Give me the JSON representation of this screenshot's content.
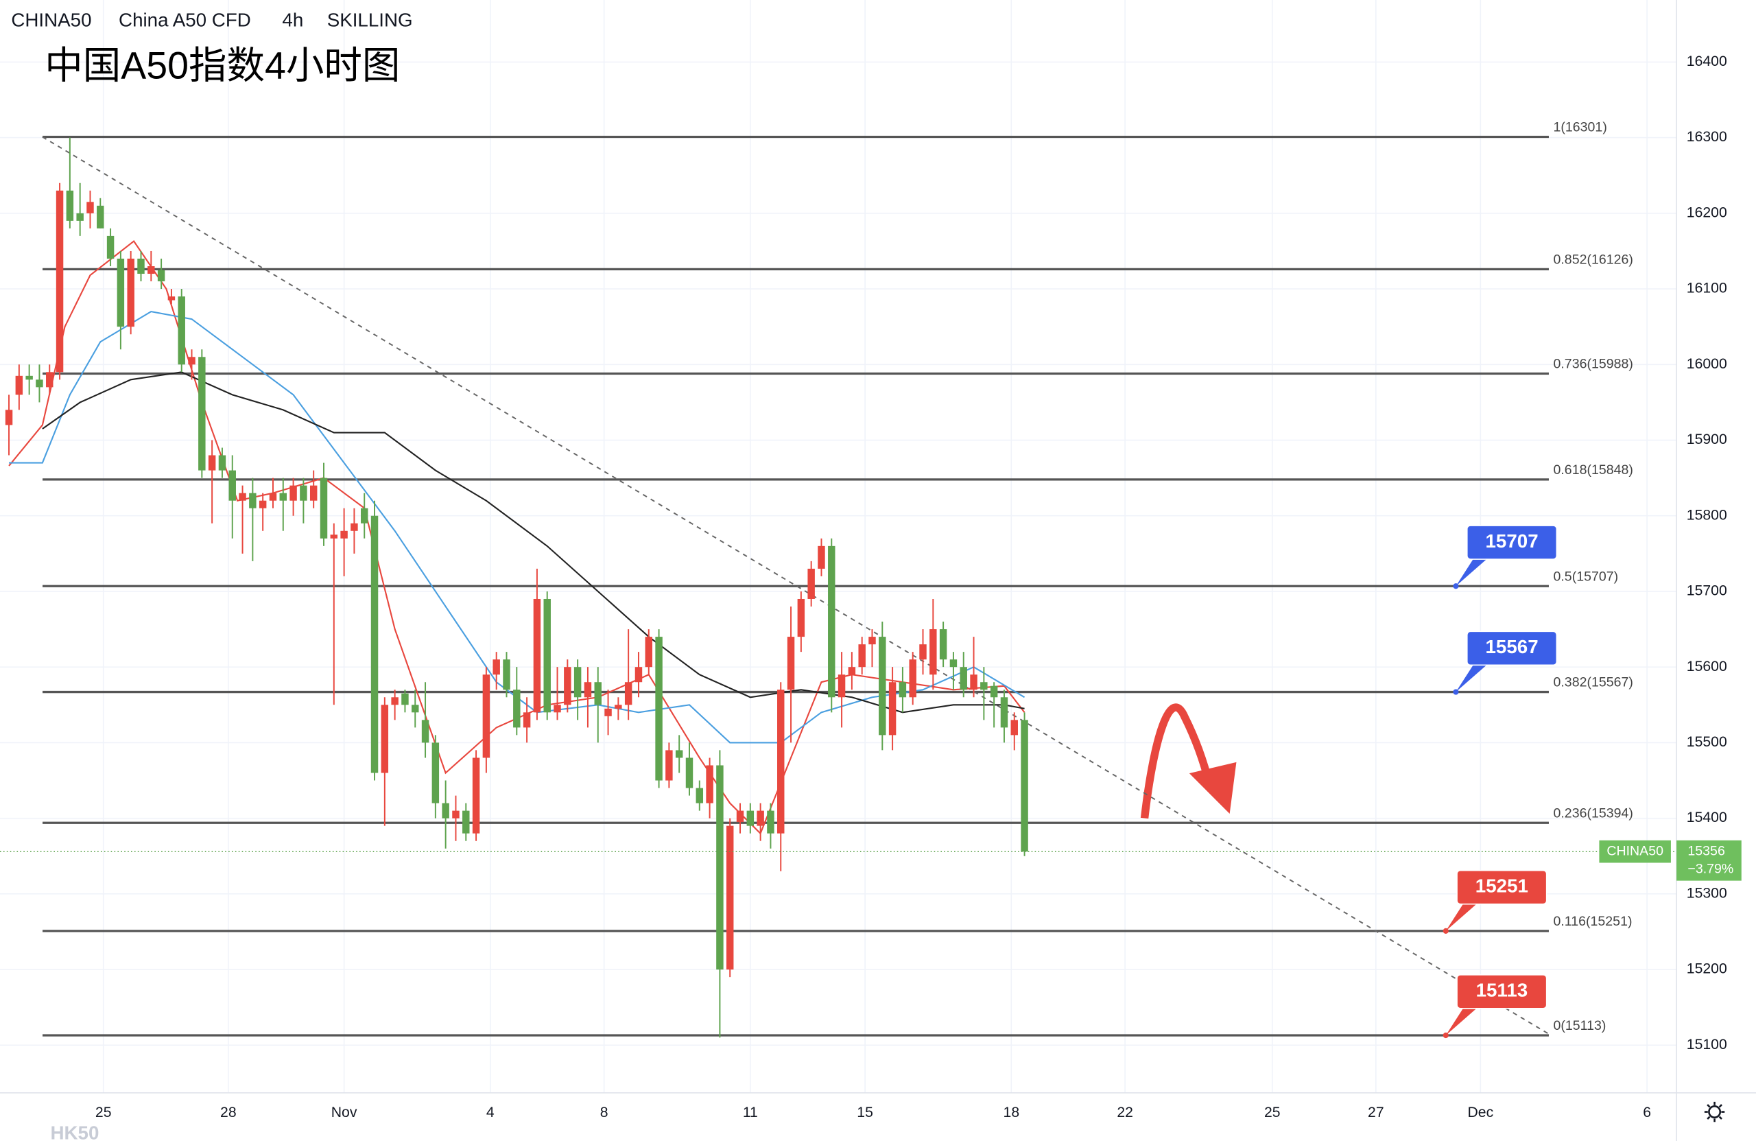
{
  "header": {
    "symbol": "CHINA50",
    "name": "China A50 CFD",
    "interval": "4h",
    "broker": "SKILLING",
    "title": "中国A50指数4小时图",
    "watermark": "HK50"
  },
  "chart_data": {
    "type": "candlestick",
    "up_color": "#e8473e",
    "down_color": "#5ea34e",
    "grid": true,
    "ylim": [
      15037,
      16482
    ],
    "yticks": [
      15100,
      15200,
      15300,
      15400,
      15500,
      15600,
      15700,
      15800,
      15900,
      16000,
      16100,
      16200,
      16300,
      16400
    ],
    "xlim": [
      -0.88,
      164.2
    ],
    "xticks": [
      {
        "value": 9.3,
        "label": "25"
      },
      {
        "value": 21.6,
        "label": "28"
      },
      {
        "value": 33,
        "label": "Nov"
      },
      {
        "value": 47.4,
        "label": "4"
      },
      {
        "value": 58.6,
        "label": "8"
      },
      {
        "value": 73,
        "label": "11"
      },
      {
        "value": 84.3,
        "label": "15"
      },
      {
        "value": 98.7,
        "label": "18"
      },
      {
        "value": 109.9,
        "label": "22"
      },
      {
        "value": 124.4,
        "label": "25"
      },
      {
        "value": 134.6,
        "label": "27"
      },
      {
        "value": 144.9,
        "label": "Dec"
      },
      {
        "value": 161.3,
        "label": "6"
      }
    ],
    "ohlc": [
      [
        15920,
        15960,
        15880,
        15940
      ],
      [
        15960,
        16000,
        15940,
        15985
      ],
      [
        15985,
        16000,
        15960,
        15980
      ],
      [
        15980,
        16000,
        15950,
        15970
      ],
      [
        15970,
        16000,
        15960,
        15990
      ],
      [
        15990,
        16240,
        15980,
        16230
      ],
      [
        16230,
        16300,
        16180,
        16190
      ],
      [
        16200,
        16240,
        16170,
        16190
      ],
      [
        16200,
        16230,
        16180,
        16215
      ],
      [
        16210,
        16220,
        16180,
        16180
      ],
      [
        16170,
        16180,
        16130,
        16140
      ],
      [
        16140,
        16150,
        16020,
        16050
      ],
      [
        16050,
        16150,
        16040,
        16140
      ],
      [
        16140,
        16150,
        16110,
        16120
      ],
      [
        16120,
        16150,
        16110,
        16130
      ],
      [
        16125,
        16140,
        16100,
        16110
      ],
      [
        16085,
        16100,
        16080,
        16090
      ],
      [
        16090,
        16100,
        15990,
        16000
      ],
      [
        16000,
        16020,
        15980,
        16010
      ],
      [
        16010,
        16020,
        15850,
        15860
      ],
      [
        15860,
        15900,
        15790,
        15880
      ],
      [
        15880,
        15890,
        15850,
        15860
      ],
      [
        15860,
        15880,
        15770,
        15820
      ],
      [
        15820,
        15840,
        15750,
        15830
      ],
      [
        15830,
        15850,
        15740,
        15810
      ],
      [
        15810,
        15830,
        15780,
        15820
      ],
      [
        15820,
        15850,
        15810,
        15830
      ],
      [
        15830,
        15850,
        15780,
        15820
      ],
      [
        15820,
        15850,
        15800,
        15840
      ],
      [
        15840,
        15850,
        15790,
        15820
      ],
      [
        15820,
        15860,
        15810,
        15840
      ],
      [
        15850,
        15870,
        15760,
        15770
      ],
      [
        15770,
        15790,
        15550,
        15775
      ],
      [
        15770,
        15810,
        15720,
        15780
      ],
      [
        15780,
        15810,
        15750,
        15790
      ],
      [
        15810,
        15830,
        15770,
        15790
      ],
      [
        15800,
        15820,
        15450,
        15460
      ],
      [
        15460,
        15560,
        15390,
        15550
      ],
      [
        15550,
        15570,
        15530,
        15560
      ],
      [
        15565,
        15570,
        15540,
        15550
      ],
      [
        15550,
        15570,
        15520,
        15540
      ],
      [
        15530,
        15580,
        15480,
        15500
      ],
      [
        15500,
        15510,
        15400,
        15420
      ],
      [
        15420,
        15450,
        15360,
        15400
      ],
      [
        15400,
        15430,
        15370,
        15410
      ],
      [
        15410,
        15420,
        15370,
        15380
      ],
      [
        15380,
        15490,
        15370,
        15480
      ],
      [
        15480,
        15600,
        15460,
        15590
      ],
      [
        15590,
        15620,
        15570,
        15610
      ],
      [
        15610,
        15620,
        15560,
        15570
      ],
      [
        15570,
        15600,
        15510,
        15520
      ],
      [
        15520,
        15560,
        15500,
        15540
      ],
      [
        15540,
        15730,
        15530,
        15690
      ],
      [
        15690,
        15700,
        15530,
        15540
      ],
      [
        15540,
        15600,
        15530,
        15550
      ],
      [
        15550,
        15610,
        15540,
        15600
      ],
      [
        15600,
        15610,
        15530,
        15560
      ],
      [
        15560,
        15600,
        15520,
        15580
      ],
      [
        15580,
        15600,
        15500,
        15550
      ],
      [
        15535,
        15570,
        15510,
        15545
      ],
      [
        15545,
        15560,
        15530,
        15550
      ],
      [
        15550,
        15650,
        15530,
        15580
      ],
      [
        15580,
        15620,
        15560,
        15600
      ],
      [
        15600,
        15650,
        15590,
        15640
      ],
      [
        15640,
        15650,
        15440,
        15450
      ],
      [
        15450,
        15500,
        15440,
        15490
      ],
      [
        15490,
        15510,
        15460,
        15480
      ],
      [
        15480,
        15500,
        15430,
        15440
      ],
      [
        15440,
        15450,
        15410,
        15420
      ],
      [
        15420,
        15480,
        15400,
        15470
      ],
      [
        15470,
        15490,
        15110,
        15200
      ],
      [
        15200,
        15400,
        15190,
        15390
      ],
      [
        15395,
        15420,
        15380,
        15410
      ],
      [
        15410,
        15420,
        15380,
        15390
      ],
      [
        15390,
        15420,
        15370,
        15410
      ],
      [
        15410,
        15420,
        15360,
        15380
      ],
      [
        15380,
        15580,
        15330,
        15570
      ],
      [
        15570,
        15680,
        15500,
        15640
      ],
      [
        15640,
        15700,
        15620,
        15690
      ],
      [
        15690,
        15740,
        15680,
        15730
      ],
      [
        15730,
        15770,
        15720,
        15760
      ],
      [
        15760,
        15770,
        15540,
        15560
      ],
      [
        15560,
        15620,
        15520,
        15590
      ],
      [
        15590,
        15620,
        15570,
        15600
      ],
      [
        15600,
        15640,
        15590,
        15630
      ],
      [
        15630,
        15650,
        15600,
        15640
      ],
      [
        15640,
        15660,
        15490,
        15510
      ],
      [
        15510,
        15600,
        15490,
        15580
      ],
      [
        15580,
        15600,
        15540,
        15560
      ],
      [
        15560,
        15620,
        15550,
        15610
      ],
      [
        15610,
        15650,
        15590,
        15630
      ],
      [
        15590,
        15690,
        15570,
        15650
      ],
      [
        15650,
        15660,
        15600,
        15610
      ],
      [
        15610,
        15620,
        15570,
        15600
      ],
      [
        15600,
        15620,
        15560,
        15570
      ],
      [
        15570,
        15640,
        15560,
        15590
      ],
      [
        15580,
        15600,
        15530,
        15570
      ],
      [
        15575,
        15580,
        15520,
        15560
      ],
      [
        15560,
        15570,
        15500,
        15520
      ],
      [
        15510,
        15540,
        15490,
        15530
      ],
      [
        15530,
        15540,
        15350,
        15356
      ]
    ],
    "lines": [
      {
        "color": "#e8473e",
        "x": [
          0,
          3.3,
          5.5,
          8,
          12.3,
          15.5,
          19,
          22.5,
          26,
          31,
          35,
          38,
          43,
          48,
          53,
          58,
          63,
          68,
          71,
          74,
          77,
          80,
          83,
          88,
          93,
          98,
          100
        ],
        "values": [
          15866,
          15920,
          16050,
          16118,
          16163,
          16100,
          15950,
          15820,
          15830,
          15850,
          15810,
          15650,
          15460,
          15520,
          15550,
          15560,
          15590,
          15480,
          15420,
          15380,
          15480,
          15580,
          15590,
          15580,
          15570,
          15575,
          15540
        ]
      },
      {
        "color": "#4a9fe0",
        "x": [
          0,
          3.3,
          6,
          9,
          14,
          18,
          23,
          28,
          33,
          38,
          43,
          48,
          52,
          58,
          62,
          67,
          71,
          76,
          80,
          85,
          90,
          95,
          100
        ],
        "values": [
          15870,
          15870,
          15960,
          16030,
          16070,
          16060,
          16010,
          15960,
          15870,
          15780,
          15680,
          15580,
          15540,
          15550,
          15540,
          15550,
          15500,
          15500,
          15540,
          15560,
          15570,
          15600,
          15560
        ]
      },
      {
        "color": "#222222",
        "x": [
          3.3,
          7,
          12,
          17,
          22,
          27,
          32,
          37,
          42,
          47,
          53,
          58,
          63,
          68,
          73,
          78,
          83,
          88,
          93,
          98,
          100
        ],
        "values": [
          15915,
          15950,
          15980,
          15990,
          15960,
          15940,
          15910,
          15910,
          15860,
          15820,
          15760,
          15700,
          15640,
          15590,
          15560,
          15570,
          15560,
          15540,
          15550,
          15550,
          15545
        ]
      }
    ],
    "trendline": {
      "x": [
        3.3,
        151.6
      ],
      "values": [
        16301,
        15115
      ]
    },
    "fib_levels": [
      {
        "label": "1(16301)",
        "value": 16301
      },
      {
        "label": "0.852(16126)",
        "value": 16126
      },
      {
        "label": "0.736(15988)",
        "value": 15988
      },
      {
        "label": "0.618(15848)",
        "value": 15848
      },
      {
        "label": "0.5(15707)",
        "value": 15707
      },
      {
        "label": "0.382(15567)",
        "value": 15567
      },
      {
        "label": "0.236(15394)",
        "value": 15394
      },
      {
        "label": "0.116(15251)",
        "value": 15251
      },
      {
        "label": "0(15113)",
        "value": 15113
      }
    ],
    "badges": [
      {
        "value": 15707,
        "color": "#3b5fe8"
      },
      {
        "value": 15567,
        "color": "#3b5fe8"
      },
      {
        "value": 15251,
        "color": "#e8473e"
      },
      {
        "value": 15113,
        "color": "#e8473e"
      }
    ],
    "last_price": {
      "symbol": "CHINA50",
      "value": 15356,
      "change": -3.79,
      "change_label": "−3.79%"
    }
  }
}
